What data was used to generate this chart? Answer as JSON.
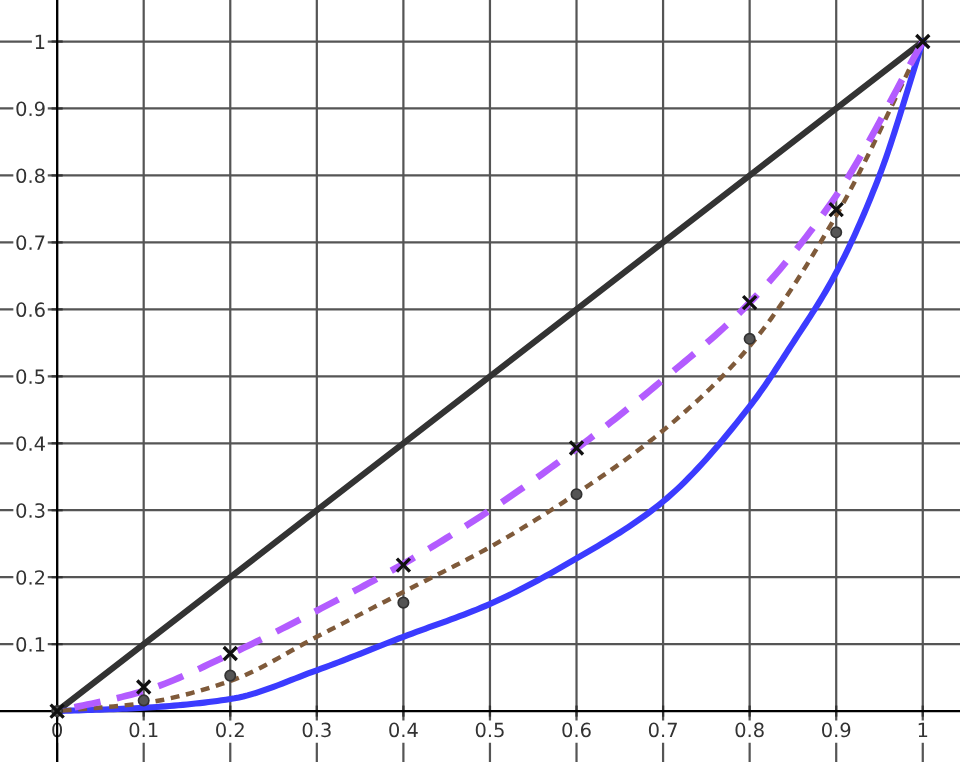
{
  "chart_data": {
    "type": "line",
    "xlim": [
      -0.066,
      1.043
    ],
    "ylim": [
      -0.076,
      1.062
    ],
    "xticks": [
      0,
      0.1,
      0.2,
      0.3,
      0.4,
      0.5,
      0.6,
      0.7,
      0.8,
      0.9,
      1
    ],
    "yticks": [
      0.1,
      0.2,
      0.3,
      0.4,
      0.5,
      0.6,
      0.7,
      0.8,
      0.9,
      1
    ],
    "grid": true,
    "series": [
      {
        "color": "#333333",
        "line_style": "solid",
        "x": [
          0,
          1
        ],
        "values": [
          0,
          1
        ]
      },
      {
        "color": "#3b3bff",
        "line_style": "solid",
        "x": [
          0,
          0.1,
          0.2,
          0.3,
          0.4,
          0.5,
          0.6,
          0.7,
          0.8,
          0.85,
          0.9,
          0.95,
          1
        ],
        "values": [
          0,
          0.005,
          0.018,
          0.061,
          0.111,
          0.16,
          0.228,
          0.313,
          0.455,
          0.55,
          0.655,
          0.8,
          1
        ]
      },
      {
        "color": "#7f5a3a",
        "line_style": "dotted",
        "x": [
          0,
          0.1,
          0.2,
          0.3,
          0.4,
          0.5,
          0.6,
          0.7,
          0.8,
          0.9,
          1
        ],
        "values": [
          0,
          0.012,
          0.045,
          0.111,
          0.178,
          0.245,
          0.325,
          0.419,
          0.545,
          0.74,
          1
        ]
      },
      {
        "color": "#b35cff",
        "line_style": "dashed",
        "x": [
          0,
          0.1,
          0.2,
          0.3,
          0.4,
          0.5,
          0.6,
          0.7,
          0.8,
          0.9,
          1
        ],
        "values": [
          0,
          0.03,
          0.085,
          0.15,
          0.22,
          0.3,
          0.392,
          0.495,
          0.61,
          0.77,
          1
        ]
      },
      {
        "type": "scatter",
        "color": "#555555",
        "marker": "circle",
        "x": [
          0,
          0.1,
          0.2,
          0.4,
          0.6,
          0.8,
          0.9
        ],
        "values": [
          0,
          0.016,
          0.053,
          0.162,
          0.324,
          0.556,
          0.715
        ]
      },
      {
        "type": "scatter",
        "color": "#111111",
        "marker": "cross",
        "x": [
          0,
          0.1,
          0.2,
          0.4,
          0.6,
          0.8,
          0.9,
          1
        ],
        "values": [
          0,
          0.036,
          0.086,
          0.218,
          0.393,
          0.61,
          0.749,
          1
        ]
      }
    ]
  }
}
